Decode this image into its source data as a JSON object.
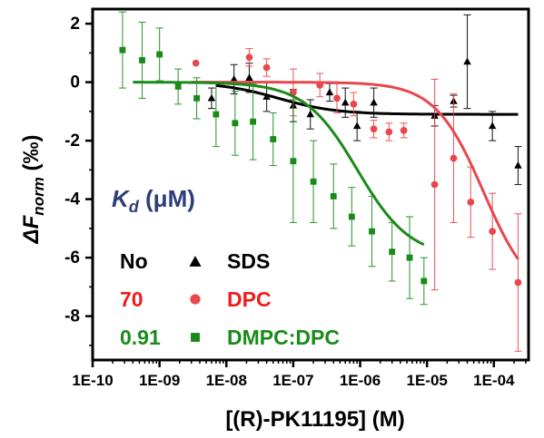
{
  "chart_data": {
    "type": "scatter",
    "xscale": "log",
    "xlim": [
      1e-10,
      0.00033
    ],
    "ylim": [
      -9.5,
      2.5
    ],
    "xticks": [
      1e-10,
      1e-09,
      1e-08,
      1e-07,
      1e-06,
      1e-05,
      0.0001
    ],
    "xtick_labels": [
      "1E-10",
      "1E-09",
      "1E-08",
      "1E-07",
      "1E-06",
      "1E-05",
      "1E-04"
    ],
    "yticks": [
      -8,
      -6,
      -4,
      -2,
      0,
      2
    ],
    "ytick_labels": [
      "-8",
      "-6",
      "-4",
      "-2",
      "0",
      "2"
    ],
    "xlabel": "[(R)-PK11195] (M)",
    "ylabel": {
      "base": "ΔF",
      "sub": "norm",
      "unit": " (‰)"
    },
    "legend_placement": "bottom-left",
    "annotation": {
      "main": "K",
      "sub": "d",
      "unit": " (μM)",
      "color": "#2f3e78"
    },
    "grid": false,
    "series": [
      {
        "name": "SDS",
        "kd_label": "No",
        "color": "#000000",
        "label_color": "#000000",
        "marker": "triangle",
        "points": [
          {
            "x": 6e-09,
            "y": -0.55,
            "err": 0.35
          },
          {
            "x": 1.3e-08,
            "y": 0.1,
            "err": 0.5
          },
          {
            "x": 2.2e-08,
            "y": 0.15,
            "err": 0.5
          },
          {
            "x": 4e-08,
            "y": -0.5,
            "err": 0.5
          },
          {
            "x": 1e-07,
            "y": -0.8,
            "err": 0.55
          },
          {
            "x": 1.8e-07,
            "y": -1.1,
            "err": 0.5
          },
          {
            "x": 3.5e-07,
            "y": -0.35,
            "err": 0.3
          },
          {
            "x": 6e-07,
            "y": -0.7,
            "err": 0.5
          },
          {
            "x": 9e-07,
            "y": -1.5,
            "err": 0.5
          },
          {
            "x": 1.6e-06,
            "y": -0.7,
            "err": 0.5
          },
          {
            "x": 1.3e-05,
            "y": -1.15,
            "err": 0.35
          },
          {
            "x": 2.5e-05,
            "y": -0.65,
            "err": 0.2
          },
          {
            "x": 4e-05,
            "y": 0.7,
            "err": 1.6
          },
          {
            "x": 9.5e-05,
            "y": -1.5,
            "err": 0.5
          },
          {
            "x": 0.00023,
            "y": -2.85,
            "err": 0.65
          }
        ],
        "fit": {
          "top": 0.0,
          "bottom": -1.1,
          "ec50": 6e-08,
          "hill": 1.0,
          "xmin": 7e-09,
          "xmax": 0.00023
        }
      },
      {
        "name": "DPC",
        "kd_label": "70",
        "color": "#e8474d",
        "label_color": "#ee1c1c",
        "marker": "circle",
        "points": [
          {
            "x": 3.5e-09,
            "y": 0.65,
            "err": 0.0
          },
          {
            "x": 2.2e-08,
            "y": 0.85,
            "err": 0.3
          },
          {
            "x": 4e-08,
            "y": 0.5,
            "err": 0.3
          },
          {
            "x": 1e-07,
            "y": -0.35,
            "err": 0.8
          },
          {
            "x": 2.5e-07,
            "y": -0.1,
            "err": 0.4
          },
          {
            "x": 4.5e-07,
            "y": -0.55,
            "err": 0.5
          },
          {
            "x": 8e-07,
            "y": -0.75,
            "err": 0.4
          },
          {
            "x": 1.6e-06,
            "y": -1.6,
            "err": 0.3
          },
          {
            "x": 2.7e-06,
            "y": -1.7,
            "err": 0.3
          },
          {
            "x": 4.5e-06,
            "y": -1.65,
            "err": 0.25
          },
          {
            "x": 1.3e-05,
            "y": -3.5,
            "err": 3.6
          },
          {
            "x": 2.5e-05,
            "y": -2.6,
            "err": 2.2
          },
          {
            "x": 4.5e-05,
            "y": -4.1,
            "err": 1.2
          },
          {
            "x": 9.5e-05,
            "y": -5.1,
            "err": 1.3
          },
          {
            "x": 0.00023,
            "y": -6.85,
            "err": 2.35
          }
        ],
        "fit": {
          "top": 0.0,
          "bottom": -7.5,
          "ec50": 7e-05,
          "hill": 1.2,
          "xmin": 3e-09,
          "xmax": 0.00023
        }
      },
      {
        "name": "DMPC:DPC",
        "kd_label": "0.91",
        "color": "#1a8a1a",
        "label_color": "#1a8a1a",
        "marker": "square",
        "points": [
          {
            "x": 2.8e-10,
            "y": 1.1,
            "err": 1.3
          },
          {
            "x": 5.5e-10,
            "y": 0.75,
            "err": 1.3
          },
          {
            "x": 1e-09,
            "y": 0.95,
            "err": 0.9
          },
          {
            "x": 1.9e-09,
            "y": -0.15,
            "err": 0.6
          },
          {
            "x": 3.6e-09,
            "y": -0.55,
            "err": 0.7
          },
          {
            "x": 7e-09,
            "y": -1.1,
            "err": 1.1
          },
          {
            "x": 1.35e-08,
            "y": -1.4,
            "err": 1.1
          },
          {
            "x": 2.5e-08,
            "y": -1.35,
            "err": 1.3
          },
          {
            "x": 5e-08,
            "y": -1.95,
            "err": 0.9
          },
          {
            "x": 1e-07,
            "y": -2.7,
            "err": 2.1
          },
          {
            "x": 2e-07,
            "y": -3.4,
            "err": 1.4
          },
          {
            "x": 4e-07,
            "y": -3.9,
            "err": 1.1
          },
          {
            "x": 7.5e-07,
            "y": -4.6,
            "err": 1.0
          },
          {
            "x": 1.5e-06,
            "y": -5.1,
            "err": 1.2
          },
          {
            "x": 3e-06,
            "y": -5.8,
            "err": 1.0
          },
          {
            "x": 5.5e-06,
            "y": -6.0,
            "err": 1.4
          },
          {
            "x": 9e-06,
            "y": -6.8,
            "err": 0.8
          }
        ],
        "fit": {
          "top": 0.0,
          "bottom": -6.0,
          "ec50": 9.1e-07,
          "hill": 1.1,
          "xmin": 4e-10,
          "xmax": 9e-06
        }
      }
    ]
  }
}
